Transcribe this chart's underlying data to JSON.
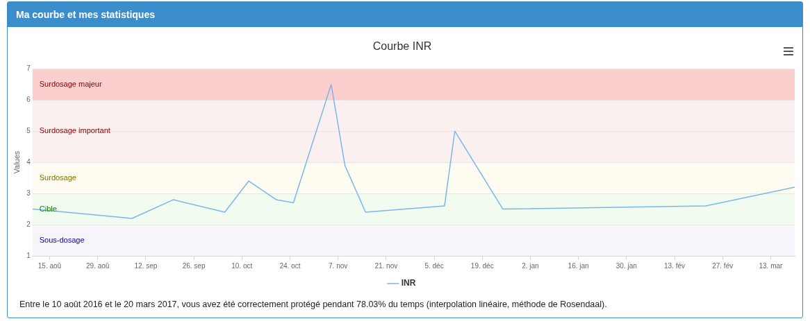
{
  "chart_data": {
    "type": "line",
    "title": "Courbe INR",
    "ylabel": "Values",
    "annotations": [
      "Ma courbe et mes statistiques",
      "Entre le 10 août 2016 et le 20 mars 2017, vous avez été correctement protégé pendant 78.03% du temps (interpolation linéaire, méthode de Rosendaal)."
    ],
    "x": [
      "2016-08-10",
      "2016-09-08",
      "2016-09-20",
      "2016-10-05",
      "2016-10-12",
      "2016-10-20",
      "2016-10-25",
      "2016-11-05",
      "2016-11-09",
      "2016-11-15",
      "2016-12-08",
      "2016-12-11",
      "2016-12-25",
      "2017-02-22",
      "2017-03-20"
    ],
    "series": [
      {
        "name": "INR",
        "color": "#7cb5ec",
        "values": [
          2.5,
          2.2,
          2.8,
          2.4,
          3.4,
          2.8,
          2.7,
          6.5,
          3.9,
          2.4,
          2.6,
          5.0,
          2.5,
          2.6,
          3.2
        ]
      }
    ],
    "xlim": [
      "2016-08-10",
      "2017-03-20"
    ],
    "xticks": [
      {
        "value": "2016-08-15",
        "label": "15. aoû"
      },
      {
        "value": "2016-08-29",
        "label": "29. aoû"
      },
      {
        "value": "2016-09-12",
        "label": "12. sep"
      },
      {
        "value": "2016-09-26",
        "label": "26. sep"
      },
      {
        "value": "2016-10-10",
        "label": "10. oct"
      },
      {
        "value": "2016-10-24",
        "label": "24. oct"
      },
      {
        "value": "2016-11-07",
        "label": "7. nov"
      },
      {
        "value": "2016-11-21",
        "label": "21. nov"
      },
      {
        "value": "2016-12-05",
        "label": "5. déc"
      },
      {
        "value": "2016-12-19",
        "label": "19. déc"
      },
      {
        "value": "2017-01-02",
        "label": "2. jan"
      },
      {
        "value": "2017-01-16",
        "label": "16. jan"
      },
      {
        "value": "2017-01-30",
        "label": "30. jan"
      },
      {
        "value": "2017-02-13",
        "label": "13. fév"
      },
      {
        "value": "2017-02-27",
        "label": "27. fév"
      },
      {
        "value": "2017-03-13",
        "label": "13. mar"
      }
    ],
    "ylim": [
      1,
      7
    ],
    "yticks": [
      1,
      2,
      3,
      4,
      5,
      6,
      7
    ],
    "bands": [
      {
        "axis": "y",
        "from": 6,
        "to": 7,
        "label": "Surdosage majeur",
        "color": "#fccfcf"
      },
      {
        "axis": "y",
        "from": 4,
        "to": 6,
        "label": "Surdosage important",
        "color": "#fbf0f0"
      },
      {
        "axis": "y",
        "from": 3,
        "to": 4,
        "label": "Surdosage",
        "color": "#fefcf0"
      },
      {
        "axis": "y",
        "from": 2,
        "to": 3,
        "label": "Cible",
        "color": "#f1fbef"
      },
      {
        "axis": "y",
        "from": 1,
        "to": 2,
        "label": "Sous-dosage",
        "color": "#f6f5fc"
      }
    ],
    "grid": "y",
    "legend": "bottom",
    "marker": "none",
    "line_style": "solid"
  }
}
